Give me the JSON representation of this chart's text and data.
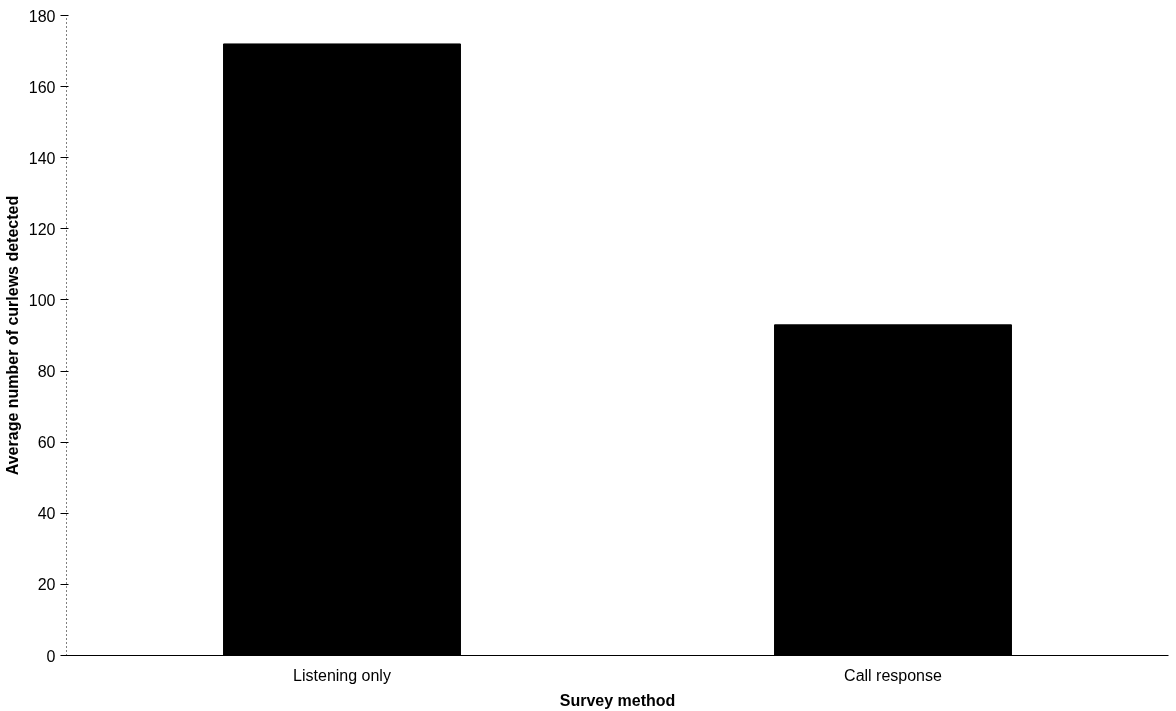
{
  "chart_data": {
    "type": "bar",
    "xlabel": "Survey method",
    "ylabel": "Average number of curlews detected",
    "categories": [
      "Listening only",
      "Call response"
    ],
    "values": [
      172,
      93
    ],
    "color": "#000000",
    "ylim": [
      0,
      180
    ],
    "yticks": [
      0,
      20,
      40,
      60,
      80,
      100,
      120,
      140,
      160,
      180
    ],
    "grid": false
  }
}
